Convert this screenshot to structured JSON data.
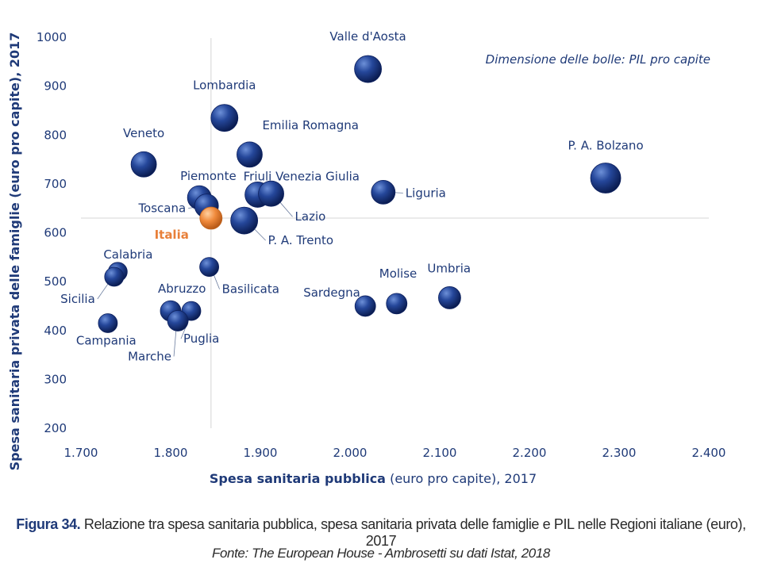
{
  "chart_data": {
    "type": "scatter",
    "subtype": "bubble",
    "note": "Dimensione delle bolle: PIL pro capite",
    "xlabel_bold": "Spesa sanitaria pubblica",
    "xlabel_rest": "(euro pro capite), 2017",
    "ylabel": "Spesa sanitaria privata delle famiglie (euro pro capite), 2017",
    "xlim": [
      1700,
      2400
    ],
    "ylim": [
      200,
      1000
    ],
    "x_ticks": [
      "1.700",
      "1.800",
      "1.900",
      "2.000",
      "2.100",
      "2.200",
      "2.300",
      "2.400"
    ],
    "y_ticks": [
      "200",
      "300",
      "400",
      "500",
      "600",
      "700",
      "800",
      "900",
      "1000"
    ],
    "reference_lines": {
      "x": 1845,
      "y": 630
    },
    "colors": {
      "bubble": "#1f3f8a",
      "highlight": "#e8803a",
      "text": "#1f3a78"
    },
    "points": [
      {
        "label": "Valle d'Aosta",
        "x": 2020,
        "y": 935
      },
      {
        "label": "Lombardia",
        "x": 1860,
        "y": 835
      },
      {
        "label": "Veneto",
        "x": 1770,
        "y": 740
      },
      {
        "label": "Emilia Romagna",
        "x": 1888,
        "y": 760
      },
      {
        "label": "P. A. Bolzano",
        "x": 2285,
        "y": 712
      },
      {
        "label": "Piemonte",
        "x": 1832,
        "y": 672
      },
      {
        "label": "Friuli Venezia Giulia",
        "x": 1897,
        "y": 678
      },
      {
        "label": "Lazio",
        "x": 1912,
        "y": 680
      },
      {
        "label": "Liguria",
        "x": 2037,
        "y": 683
      },
      {
        "label": "Toscana",
        "x": 1840,
        "y": 655
      },
      {
        "label": "Italia",
        "x": 1845,
        "y": 630,
        "highlight": true
      },
      {
        "label": "P. A. Trento",
        "x": 1882,
        "y": 625
      },
      {
        "label": "Calabria",
        "x": 1741,
        "y": 520
      },
      {
        "label": "Sicilia",
        "x": 1737,
        "y": 510
      },
      {
        "label": "Basilicata",
        "x": 1843,
        "y": 530
      },
      {
        "label": "Abruzzo",
        "x": 1800,
        "y": 440
      },
      {
        "label": "Puglia",
        "x": 1823,
        "y": 440
      },
      {
        "label": "Marche",
        "x": 1808,
        "y": 420
      },
      {
        "label": "Campania",
        "x": 1730,
        "y": 415
      },
      {
        "label": "Sardegna",
        "x": 2017,
        "y": 450
      },
      {
        "label": "Molise",
        "x": 2052,
        "y": 455
      },
      {
        "label": "Umbria",
        "x": 2111,
        "y": 467
      }
    ]
  },
  "caption": {
    "figure": "Figura 34.",
    "text": "Relazione tra spesa sanitaria pubblica, spesa sanitaria privata delle famiglie e PIL nelle Regioni italiane (euro), 2017"
  },
  "source": "Fonte: The European House - Ambrosetti su dati Istat, 2018"
}
